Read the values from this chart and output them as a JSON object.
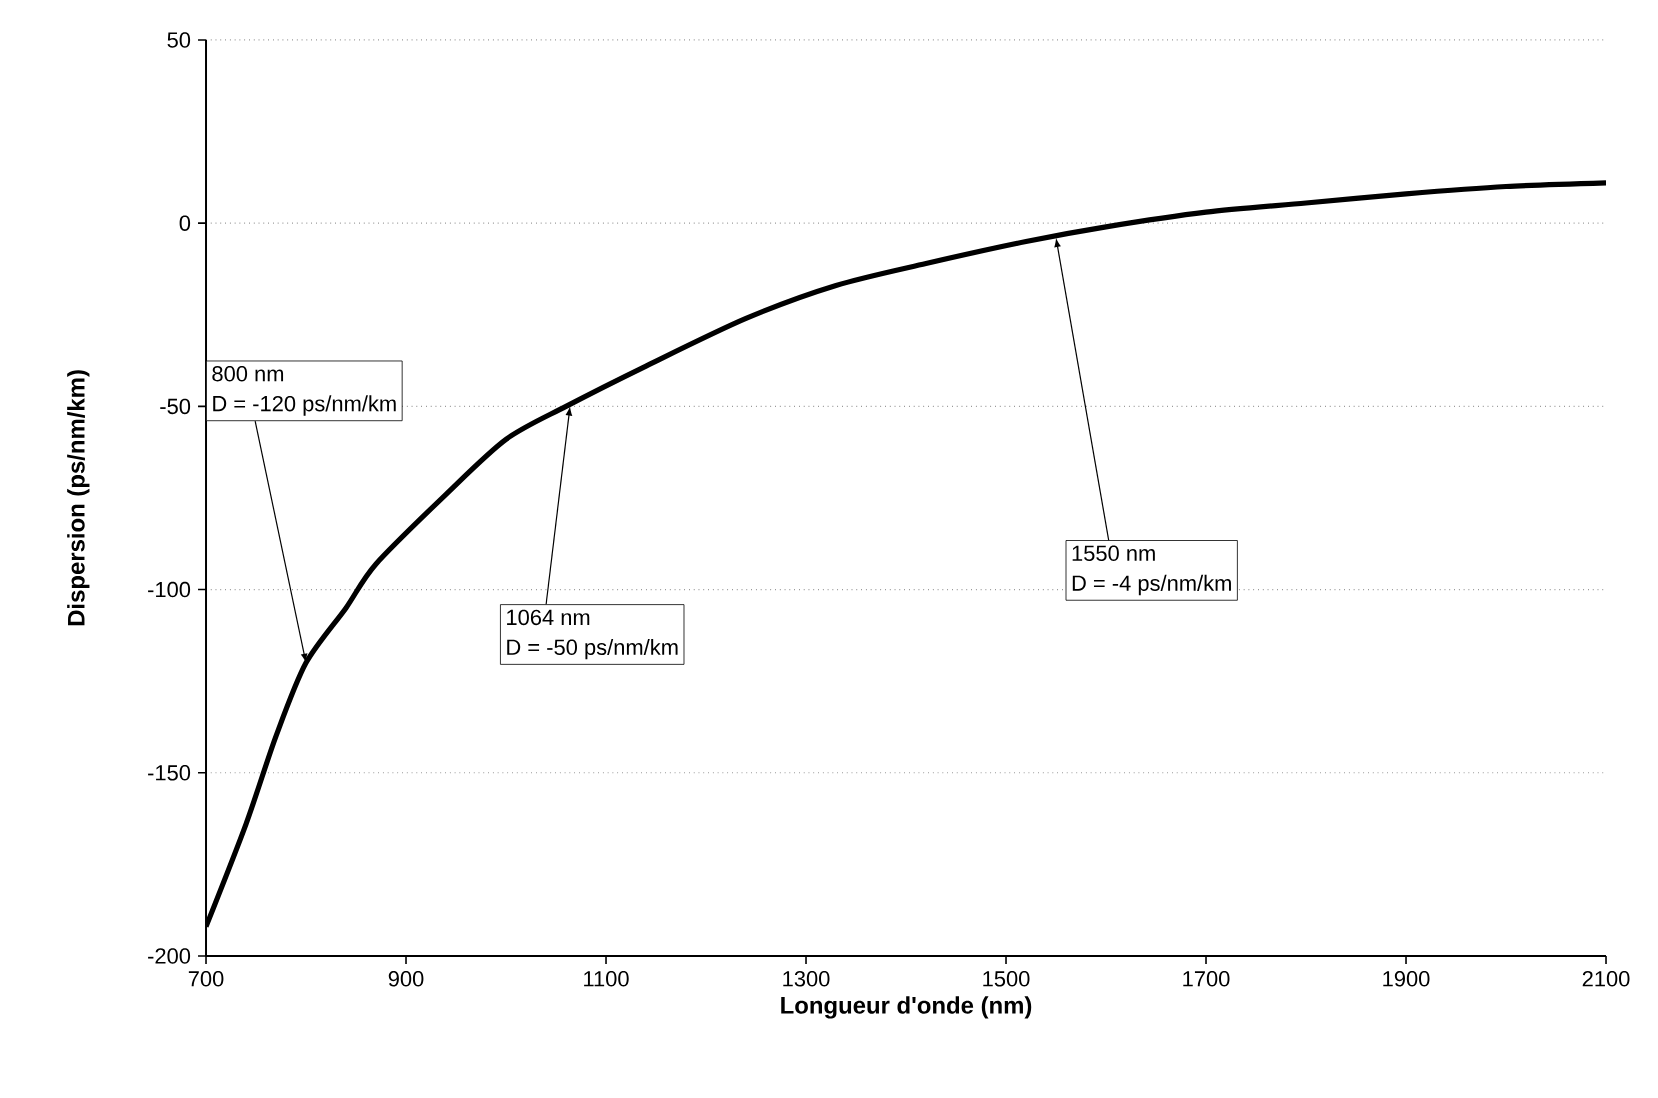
{
  "chart_data": {
    "type": "line",
    "xlabel": "Longueur d'onde (nm)",
    "ylabel": "Dispersion (ps/nm/km)",
    "series": [
      {
        "color": "#000000",
        "x": [
          700,
          740,
          770,
          800,
          840,
          870,
          940,
          1000,
          1060,
          1140,
          1240,
          1330,
          1420,
          1520,
          1600,
          1700,
          1800,
          1900,
          2000,
          2100
        ],
        "values": [
          -192,
          -164,
          -140,
          -120,
          -105,
          -93,
          -74,
          -59,
          -50,
          -39,
          -26,
          -17,
          -11,
          -5,
          -1,
          3,
          5.5,
          8,
          10,
          11
        ]
      }
    ],
    "xlim": [
      700,
      2100
    ],
    "xticks": [
      700,
      900,
      1100,
      1300,
      1500,
      1700,
      1900,
      2100
    ],
    "ylim": [
      -200,
      50
    ],
    "yticks": [
      -200,
      -150,
      -100,
      -50,
      0,
      50
    ],
    "grid": "y",
    "marker": "none",
    "line_style": "solid",
    "annotations": [
      {
        "text": "800 nm\nD = -120 ps/nm/km",
        "x": 800,
        "y": -120
      },
      {
        "text": "1064 nm\nD = -50 ps/nm/km",
        "x": 1064,
        "y": -50
      },
      {
        "text": "1550 nm\nD = -4 ps/nm/km",
        "x": 1550,
        "y": -4
      }
    ]
  }
}
